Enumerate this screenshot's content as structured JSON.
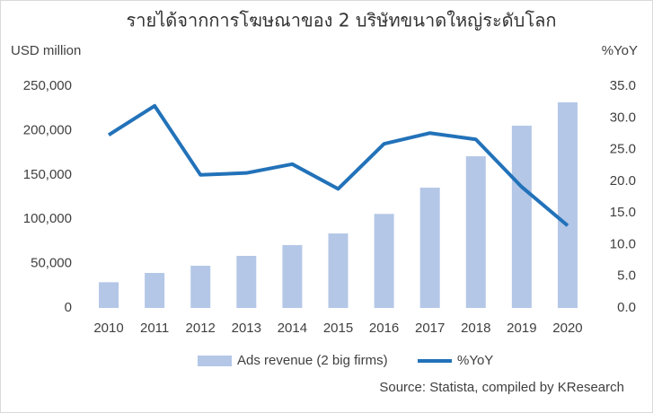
{
  "chart_data": {
    "type": "bar",
    "title": "รายได้จากการโฆษณาของ 2 บริษัทขนาดใหญ่ระดับโลก",
    "ylabel": "USD million",
    "y2label": "%YoY",
    "source": "Source: Statista, compiled by KResearch",
    "categories": [
      "2010",
      "2011",
      "2012",
      "2013",
      "2014",
      "2015",
      "2016",
      "2017",
      "2018",
      "2019",
      "2020"
    ],
    "series": [
      {
        "name": "Ads revenue (2 big firms)",
        "type": "bar",
        "color": "#b4c7e7",
        "values": [
          29000,
          39500,
          47600,
          58700,
          70900,
          84000,
          106000,
          135600,
          171000,
          205500,
          231800
        ]
      },
      {
        "name": "%YoY",
        "type": "line",
        "axis": "y2",
        "color": "#2272b9",
        "values": [
          27.3,
          31.9,
          21.0,
          21.3,
          22.7,
          18.8,
          25.9,
          27.6,
          26.6,
          19.1,
          13.0
        ]
      }
    ],
    "ylim": [
      0,
      250000
    ],
    "yticks": [
      0,
      {
        "value": 50000,
        "label": "50,000"
      },
      {
        "value": 100000,
        "label": "100,000"
      },
      {
        "value": 150000,
        "label": "150,000"
      },
      {
        "value": 200000,
        "label": "200,000"
      },
      {
        "value": 250000,
        "label": "250,000"
      }
    ],
    "y2lim": [
      0,
      35
    ],
    "y2ticks": [
      {
        "value": 0,
        "label": "0.0"
      },
      {
        "value": 5,
        "label": "5.0"
      },
      {
        "value": 10,
        "label": "10.0"
      },
      {
        "value": 15,
        "label": "15.0"
      },
      {
        "value": 20,
        "label": "20.0"
      },
      {
        "value": 25,
        "label": "25.0"
      },
      {
        "value": 30,
        "label": "30.0"
      },
      {
        "value": 35,
        "label": "35.0"
      }
    ],
    "grid": false,
    "legend": "bottom"
  }
}
